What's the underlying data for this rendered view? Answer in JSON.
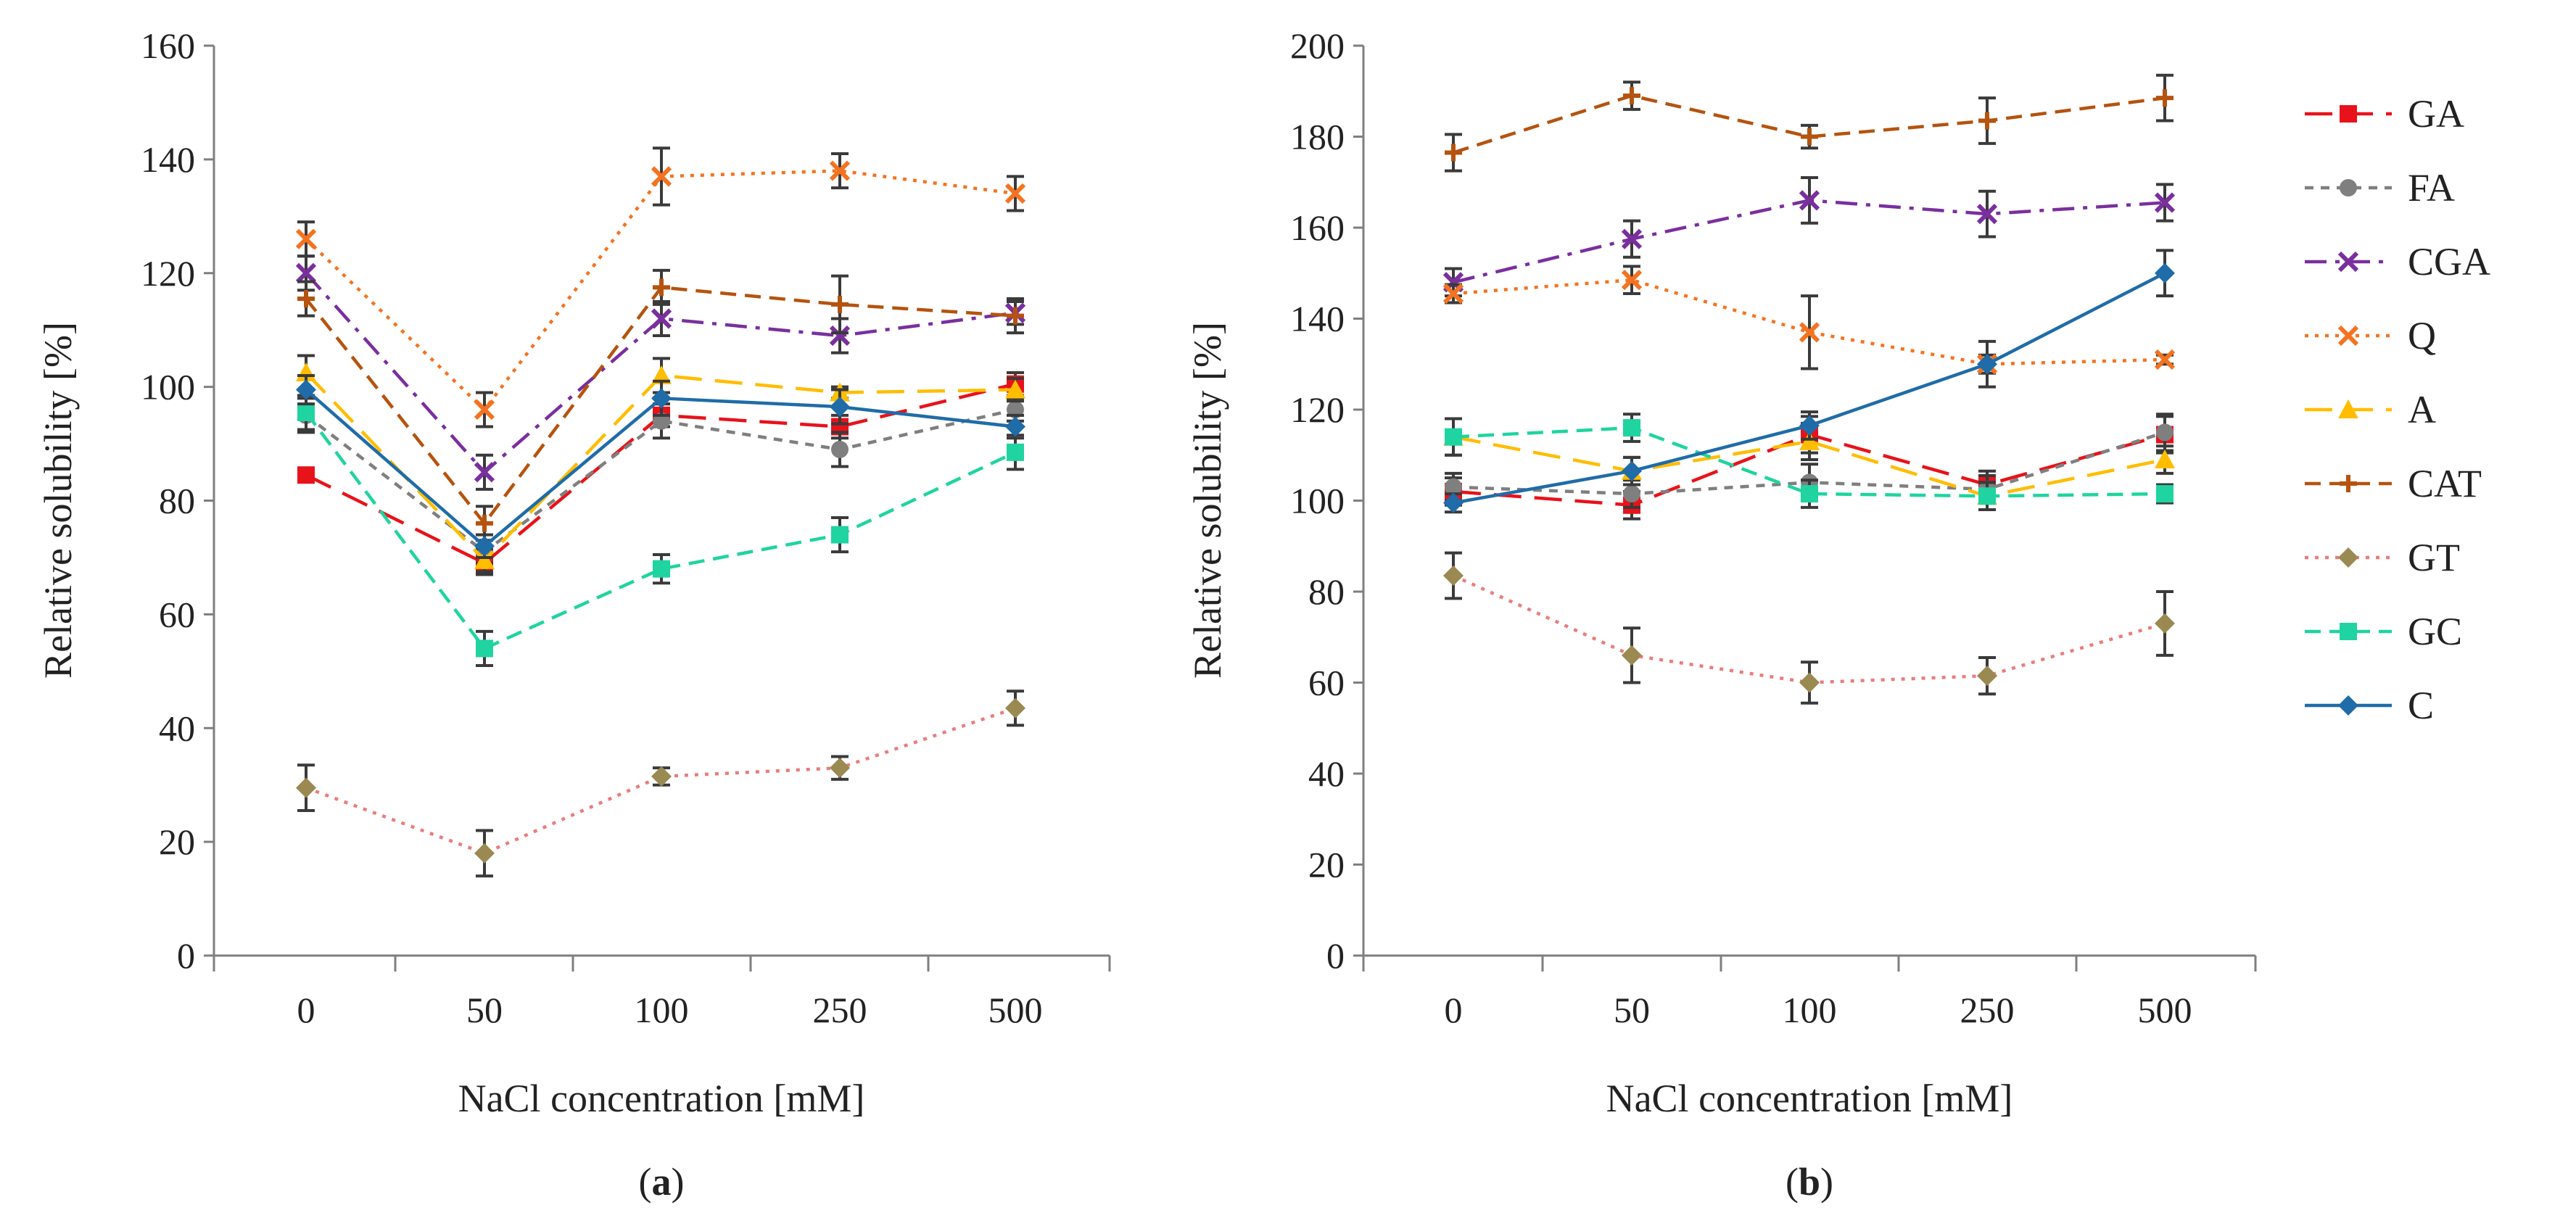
{
  "chart_data": [
    {
      "type": "line",
      "panel_label": "a",
      "categories": [
        "0",
        "50",
        "100",
        "250",
        "500"
      ],
      "xlabel": "NaCl concentration  [mM]",
      "ylabel": "Relative solubility  [%]",
      "ylim": [
        0,
        160
      ],
      "yticks": [
        "0",
        "20",
        "40",
        "60",
        "80",
        "100",
        "120",
        "140",
        "160"
      ],
      "series": [
        {
          "name": "GA",
          "values": [
            84.5,
            69,
            95,
            93,
            100.5
          ],
          "errors": [
            1,
            2,
            2,
            2,
            2
          ]
        },
        {
          "name": "FA",
          "values": [
            95,
            71,
            94,
            89,
            96
          ],
          "errors": [
            3,
            2,
            3,
            3,
            2
          ]
        },
        {
          "name": "CGA",
          "values": [
            120,
            85,
            112,
            109,
            113
          ],
          "errors": [
            3,
            3,
            3,
            3,
            2
          ]
        },
        {
          "name": "Q",
          "values": [
            126,
            96,
            137,
            138,
            134
          ],
          "errors": [
            3,
            3,
            5,
            3,
            3
          ]
        },
        {
          "name": "A",
          "values": [
            102.5,
            69.5,
            102,
            99,
            99.5
          ],
          "errors": [
            3,
            2,
            3,
            1,
            2
          ]
        },
        {
          "name": "CAT",
          "values": [
            115.5,
            76,
            117.5,
            114.5,
            112.5
          ],
          "errors": [
            3,
            3,
            3,
            5,
            3
          ]
        },
        {
          "name": "GT",
          "values": [
            29.5,
            18,
            31.5,
            33,
            43.5
          ],
          "errors": [
            4,
            4,
            1.5,
            2,
            3
          ]
        },
        {
          "name": "GC",
          "values": [
            95.5,
            54,
            68,
            74,
            88.5
          ],
          "errors": [
            3,
            3,
            2.5,
            3,
            3
          ]
        },
        {
          "name": "C",
          "values": [
            99.5,
            72,
            98,
            96.5,
            93
          ],
          "errors": [
            2.5,
            2,
            3,
            3,
            2
          ]
        }
      ]
    },
    {
      "type": "line",
      "panel_label": "b",
      "categories": [
        "0",
        "50",
        "100",
        "250",
        "500"
      ],
      "xlabel": "NaCl concentration  [mM]",
      "ylabel": "Relative solubility [%]",
      "ylim": [
        0,
        200
      ],
      "yticks": [
        "0",
        "20",
        "40",
        "60",
        "80",
        "100",
        "120",
        "140",
        "160",
        "180",
        "200"
      ],
      "series": [
        {
          "name": "GA",
          "values": [
            102,
            99,
            114.5,
            103.5,
            114.5
          ],
          "errors": [
            3,
            3,
            4,
            3,
            4
          ]
        },
        {
          "name": "FA",
          "values": [
            103,
            101.5,
            104,
            102.5,
            115
          ],
          "errors": [
            3,
            3,
            4,
            3,
            4
          ]
        },
        {
          "name": "CGA",
          "values": [
            148,
            157.5,
            166,
            163,
            165.5
          ],
          "errors": [
            3,
            4,
            5,
            5,
            4
          ]
        },
        {
          "name": "Q",
          "values": [
            145.5,
            148.5,
            137,
            130,
            131
          ],
          "errors": [
            2,
            3,
            8,
            2,
            1
          ]
        },
        {
          "name": "A",
          "values": [
            114,
            106.5,
            113,
            101,
            109
          ],
          "errors": [
            4,
            3,
            4,
            3,
            3
          ]
        },
        {
          "name": "CAT",
          "values": [
            176.5,
            189,
            180,
            183.5,
            188.5
          ],
          "errors": [
            4,
            3,
            2.5,
            5,
            5
          ]
        },
        {
          "name": "GT",
          "values": [
            83.5,
            66,
            60,
            61.5,
            73
          ],
          "errors": [
            5,
            6,
            4.5,
            4,
            7
          ]
        },
        {
          "name": "GC",
          "values": [
            114,
            116,
            101.5,
            101,
            101.5
          ],
          "errors": [
            4,
            3,
            3,
            3,
            2
          ]
        },
        {
          "name": "C",
          "values": [
            99.5,
            106.5,
            116.5,
            130,
            150
          ],
          "errors": [
            2,
            3,
            3,
            5,
            5
          ]
        }
      ]
    }
  ],
  "legend": [
    {
      "name": "GA",
      "color": "#e8121b",
      "dash": "long",
      "marker": "square"
    },
    {
      "name": "FA",
      "color": "#7f7f7f",
      "dash": "short",
      "marker": "circle"
    },
    {
      "name": "CGA",
      "color": "#7a2f9e",
      "dash": "dashdot",
      "marker": "x"
    },
    {
      "name": "Q",
      "color": "#f47320",
      "dash": "dot",
      "marker": "x"
    },
    {
      "name": "A",
      "color": "#ffbd00",
      "dash": "long",
      "marker": "triangle"
    },
    {
      "name": "CAT",
      "color": "#b5530f",
      "dash": "medium",
      "marker": "plus"
    },
    {
      "name": "GT",
      "color": "#e97d7d",
      "dash": "dot",
      "marker": "diamond",
      "marker_color": "#9b8952"
    },
    {
      "name": "GC",
      "color": "#1fd4a0",
      "dash": "medium",
      "marker": "square"
    },
    {
      "name": "C",
      "color": "#1f6ca8",
      "dash": "solid",
      "marker": "diamond"
    }
  ],
  "colors": {
    "error_bar": "#3a3a3a",
    "axis": "#7f7f7f"
  }
}
